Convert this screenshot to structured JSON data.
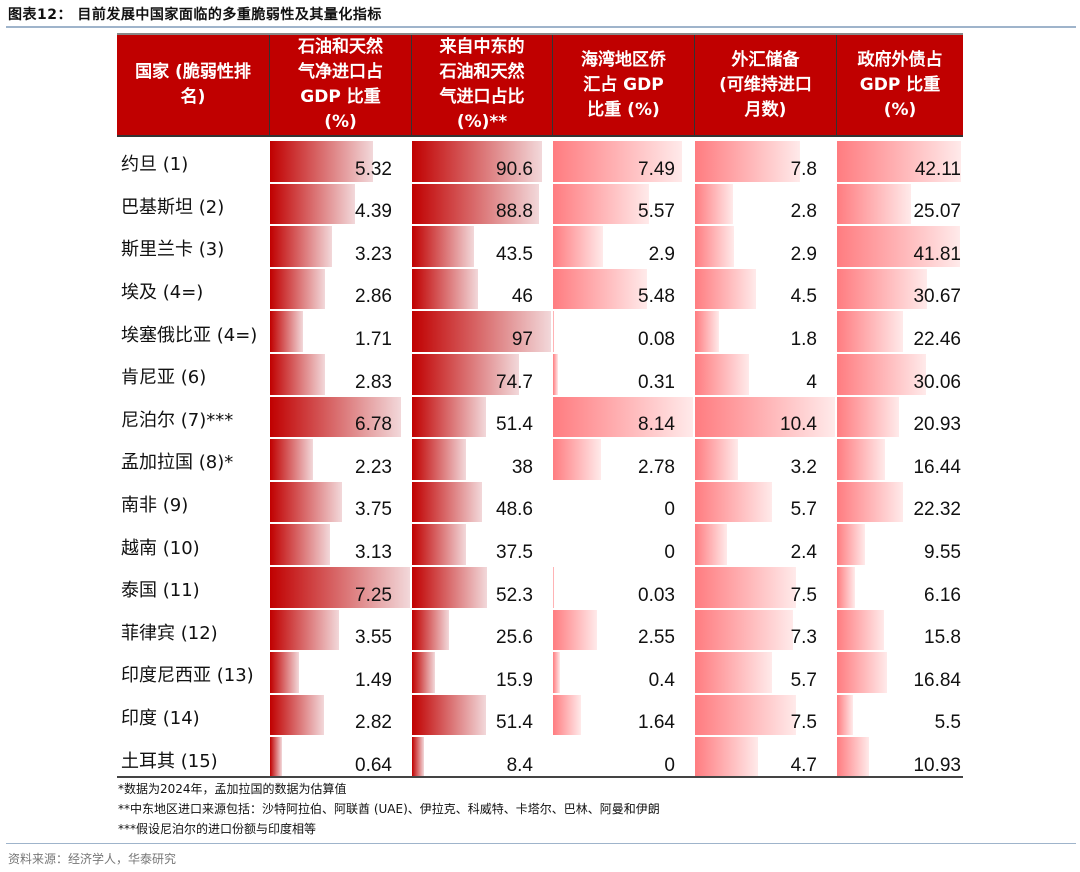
{
  "figure": {
    "title": "图表12：  目前发展中国家面临的多重脆弱性及其量化指标"
  },
  "table": {
    "headers": [
      "国家 (脆弱性排\n名)",
      "石油和天然\n气净进口占\nGDP 比重\n(%)",
      "来自中东的\n石油和天然\n气进口占比\n(%)**",
      "海湾地区侨\n汇占 GDP\n比重 (%)",
      "外汇储备\n(可维持进口\n月数)",
      "政府外债占\nGDP 比重\n(%)"
    ],
    "bar_colors": {
      "dark": [
        "#c00000",
        "#f2d8da"
      ],
      "light": [
        "#ff7c80",
        "#ffeaea"
      ]
    },
    "rows": [
      {
        "country": "约旦 (1)",
        "oil_gas_net_import_gdp": "5.32",
        "middle_east_share": "90.6",
        "gulf_remit_gdp": "7.49",
        "fx_reserve_months": "7.8",
        "ext_debt_gdp": "42.11"
      },
      {
        "country": "巴基斯坦 (2)",
        "oil_gas_net_import_gdp": "4.39",
        "middle_east_share": "88.8",
        "gulf_remit_gdp": "5.57",
        "fx_reserve_months": "2.8",
        "ext_debt_gdp": "25.07"
      },
      {
        "country": "斯里兰卡 (3)",
        "oil_gas_net_import_gdp": "3.23",
        "middle_east_share": "43.5",
        "gulf_remit_gdp": "2.9",
        "fx_reserve_months": "2.9",
        "ext_debt_gdp": "41.81"
      },
      {
        "country": "埃及 (4=)",
        "oil_gas_net_import_gdp": "2.86",
        "middle_east_share": "46",
        "gulf_remit_gdp": "5.48",
        "fx_reserve_months": "4.5",
        "ext_debt_gdp": "30.67"
      },
      {
        "country": "埃塞俄比亚 (4=)",
        "oil_gas_net_import_gdp": "1.71",
        "middle_east_share": "97",
        "gulf_remit_gdp": "0.08",
        "fx_reserve_months": "1.8",
        "ext_debt_gdp": "22.46"
      },
      {
        "country": "肯尼亚 (6)",
        "oil_gas_net_import_gdp": "2.83",
        "middle_east_share": "74.7",
        "gulf_remit_gdp": "0.31",
        "fx_reserve_months": "4",
        "ext_debt_gdp": "30.06"
      },
      {
        "country": "尼泊尔 (7)***",
        "oil_gas_net_import_gdp": "6.78",
        "middle_east_share": "51.4",
        "gulf_remit_gdp": "8.14",
        "fx_reserve_months": "10.4",
        "ext_debt_gdp": "20.93"
      },
      {
        "country": "孟加拉国 (8)*",
        "oil_gas_net_import_gdp": "2.23",
        "middle_east_share": "38",
        "gulf_remit_gdp": "2.78",
        "fx_reserve_months": "3.2",
        "ext_debt_gdp": "16.44"
      },
      {
        "country": "南非 (9)",
        "oil_gas_net_import_gdp": "3.75",
        "middle_east_share": "48.6",
        "gulf_remit_gdp": "0",
        "fx_reserve_months": "5.7",
        "ext_debt_gdp": "22.32"
      },
      {
        "country": "越南 (10)",
        "oil_gas_net_import_gdp": "3.13",
        "middle_east_share": "37.5",
        "gulf_remit_gdp": "0",
        "fx_reserve_months": "2.4",
        "ext_debt_gdp": "9.55"
      },
      {
        "country": "泰国 (11)",
        "oil_gas_net_import_gdp": "7.25",
        "middle_east_share": "52.3",
        "gulf_remit_gdp": "0.03",
        "fx_reserve_months": "7.5",
        "ext_debt_gdp": "6.16"
      },
      {
        "country": "菲律宾 (12)",
        "oil_gas_net_import_gdp": "3.55",
        "middle_east_share": "25.6",
        "gulf_remit_gdp": "2.55",
        "fx_reserve_months": "7.3",
        "ext_debt_gdp": "15.8"
      },
      {
        "country": "印度尼西亚 (13)",
        "oil_gas_net_import_gdp": "1.49",
        "middle_east_share": "15.9",
        "gulf_remit_gdp": "0.4",
        "fx_reserve_months": "5.7",
        "ext_debt_gdp": "16.84"
      },
      {
        "country": "印度 (14)",
        "oil_gas_net_import_gdp": "2.82",
        "middle_east_share": "51.4",
        "gulf_remit_gdp": "1.64",
        "fx_reserve_months": "7.5",
        "ext_debt_gdp": "5.5"
      },
      {
        "country": "土耳其 (15)",
        "oil_gas_net_import_gdp": "0.64",
        "middle_east_share": "8.4",
        "gulf_remit_gdp": "0",
        "fx_reserve_months": "4.7",
        "ext_debt_gdp": "10.93"
      }
    ]
  },
  "notes": [
    "*数据为2024年，孟加拉国的数据为估算值",
    "**中东地区进口来源包括：沙特阿拉伯、阿联酋 (UAE)、伊拉克、科威特、卡塔尔、巴林、阿曼和伊朗",
    "***假设尼泊尔的进口份额与印度相等"
  ],
  "source": "资料来源：经济学人，华泰研究"
}
